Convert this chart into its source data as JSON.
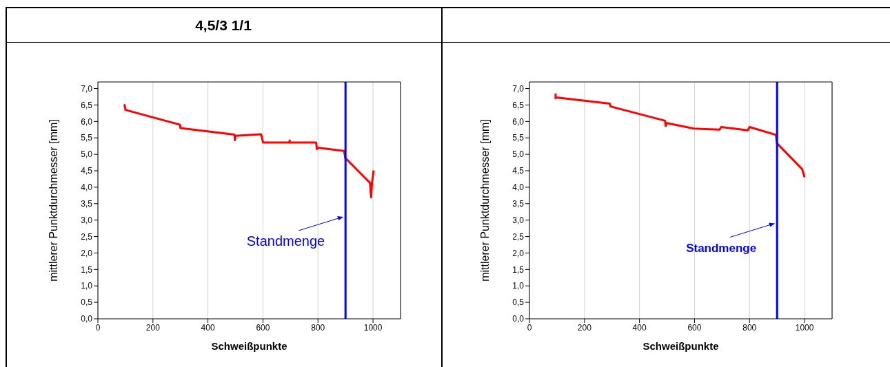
{
  "chart_data": [
    {
      "type": "line",
      "title": "4,5/3 1/1",
      "xlabel": "Schweißpunkte",
      "ylabel": "mittlerer Punktdurchmesser [mm]",
      "series": [
        {
          "color": "#ff0000",
          "x": [
            97,
            97,
            100,
            298,
            300,
            496,
            498,
            500,
            593,
            598,
            600,
            696,
            697,
            698,
            793,
            796,
            799,
            895,
            899,
            989,
            993,
            996,
            1002
          ],
          "values": [
            6.45,
            6.5,
            6.35,
            5.9,
            5.8,
            5.6,
            5.43,
            5.56,
            5.61,
            5.45,
            5.36,
            5.36,
            5.42,
            5.36,
            5.36,
            5.16,
            5.2,
            5.1,
            4.89,
            4.13,
            3.69,
            4.1,
            4.51
          ]
        }
      ],
      "xlim": [
        0,
        1100
      ],
      "xticks": [
        0,
        200,
        400,
        600,
        800,
        1000
      ],
      "ylim": [
        0,
        7.2
      ],
      "yticks": [
        {
          "value": 0,
          "label": "0,0"
        },
        {
          "value": 0.5,
          "label": "0,5"
        },
        {
          "value": 1,
          "label": "1,0"
        },
        {
          "value": 1.5,
          "label": "1,5"
        },
        {
          "value": 2,
          "label": "2,0"
        },
        {
          "value": 2.5,
          "label": "2,5"
        },
        {
          "value": 3,
          "label": "3,0"
        },
        {
          "value": 3.5,
          "label": "3,5"
        },
        {
          "value": 4,
          "label": "4,0"
        },
        {
          "value": 4.5,
          "label": "4,5"
        },
        {
          "value": 5,
          "label": "5,0"
        },
        {
          "value": 5.5,
          "label": "5,5"
        },
        {
          "value": 6,
          "label": "6,0"
        },
        {
          "value": 6.5,
          "label": "6,5"
        },
        {
          "value": 7,
          "label": "7,0"
        }
      ],
      "ref_lines": [
        {
          "axis": "x",
          "value": 900,
          "color": "#0000ff"
        }
      ],
      "annotations": [
        {
          "text": "Standmenge",
          "x": 900,
          "y": 3.1
        }
      ],
      "grid": "x",
      "marker": "none",
      "line_style": "solid"
    },
    {
      "type": "line",
      "xlabel": "Schweißpunkte",
      "ylabel": "mittlerer Punktdurchmesser [mm]",
      "series": [
        {
          "color": "#ff0000",
          "x": [
            95,
            95,
            97,
            292,
            295,
            297,
            493,
            495,
            499,
            598,
            691,
            697,
            794,
            800,
            896,
            899,
            991,
            1000
          ],
          "values": [
            6.85,
            6.7,
            6.73,
            6.54,
            6.45,
            6.45,
            6.02,
            5.86,
            5.95,
            5.78,
            5.75,
            5.83,
            5.73,
            5.83,
            5.59,
            5.34,
            4.55,
            4.3
          ]
        }
      ],
      "xlim": [
        0,
        1100
      ],
      "xticks": [
        0,
        200,
        400,
        600,
        800,
        1000
      ],
      "ylim": [
        0,
        7.2
      ],
      "yticks": [
        {
          "value": 0,
          "label": "0,0"
        },
        {
          "value": 0.5,
          "label": "0,5"
        },
        {
          "value": 1,
          "label": "1,0"
        },
        {
          "value": 1.5,
          "label": "1,5"
        },
        {
          "value": 2,
          "label": "2,0"
        },
        {
          "value": 2.5,
          "label": "2,5"
        },
        {
          "value": 3,
          "label": "3,0"
        },
        {
          "value": 3.5,
          "label": "3,5"
        },
        {
          "value": 4,
          "label": "4,0"
        },
        {
          "value": 4.5,
          "label": "4,5"
        },
        {
          "value": 5,
          "label": "5,0"
        },
        {
          "value": 5.5,
          "label": "5,5"
        },
        {
          "value": 6,
          "label": "6,0"
        },
        {
          "value": 6.5,
          "label": "6,5"
        },
        {
          "value": 7,
          "label": "7,0"
        }
      ],
      "ref_lines": [
        {
          "axis": "x",
          "value": 900,
          "color": "#0000ff"
        }
      ],
      "annotations": [
        {
          "text": "Standmenge",
          "x": 900,
          "y": 2.9
        }
      ],
      "grid": "x",
      "marker": "none",
      "line_style": "solid"
    }
  ]
}
